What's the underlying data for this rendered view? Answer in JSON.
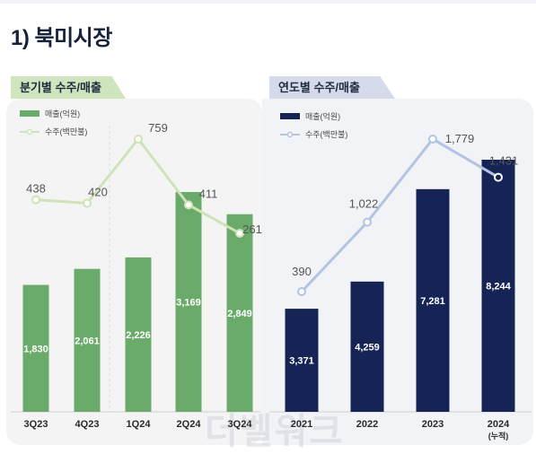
{
  "page": {
    "title": "1) 북미시장"
  },
  "panels": {
    "left_title": "분기별 수주/매출",
    "right_title": "연도별 수주/매출"
  },
  "watermark": "더벨워크",
  "chart_data": [
    {
      "type": "bar",
      "title": "분기별 수주/매출",
      "categories": [
        "3Q23",
        "4Q23",
        "1Q24",
        "2Q24",
        "3Q24"
      ],
      "ylim": [
        0,
        4000
      ],
      "y2lim": [
        0,
        900
      ],
      "legend": {
        "placement": "top-left"
      },
      "grid": false,
      "series": [
        {
          "name": "매출(억원)",
          "type": "bar",
          "values": [
            1830,
            2061,
            2226,
            3169,
            2849
          ],
          "labels": [
            "1,830",
            "2,061",
            "2,226",
            "3,169",
            "2,849"
          ],
          "color": "#6aaa6a"
        },
        {
          "name": "수주(백만불)",
          "type": "line",
          "values": [
            438,
            420,
            759,
            411,
            261
          ],
          "labels": [
            "438",
            "420",
            "759",
            "411",
            "261"
          ],
          "color": "#cfe3b9"
        }
      ]
    },
    {
      "type": "bar",
      "title": "연도별 수주/매출",
      "categories": [
        "2021",
        "2022",
        "2023",
        "2024\n(누적)"
      ],
      "ylim": [
        0,
        10000
      ],
      "y2lim": [
        0,
        2000
      ],
      "legend": {
        "placement": "top-left"
      },
      "grid": false,
      "series": [
        {
          "name": "매출(억원)",
          "type": "bar",
          "values": [
            3371,
            4259,
            7281,
            8244
          ],
          "labels": [
            "3,371",
            "4,259",
            "7,281",
            "8,244"
          ],
          "color": "#152455"
        },
        {
          "name": "수주(백만불)",
          "type": "line",
          "values": [
            390,
            1022,
            1779,
            1431
          ],
          "labels": [
            "390",
            "1,022",
            "1,779",
            "1,431"
          ],
          "color": "#b5c3e2"
        }
      ]
    }
  ]
}
